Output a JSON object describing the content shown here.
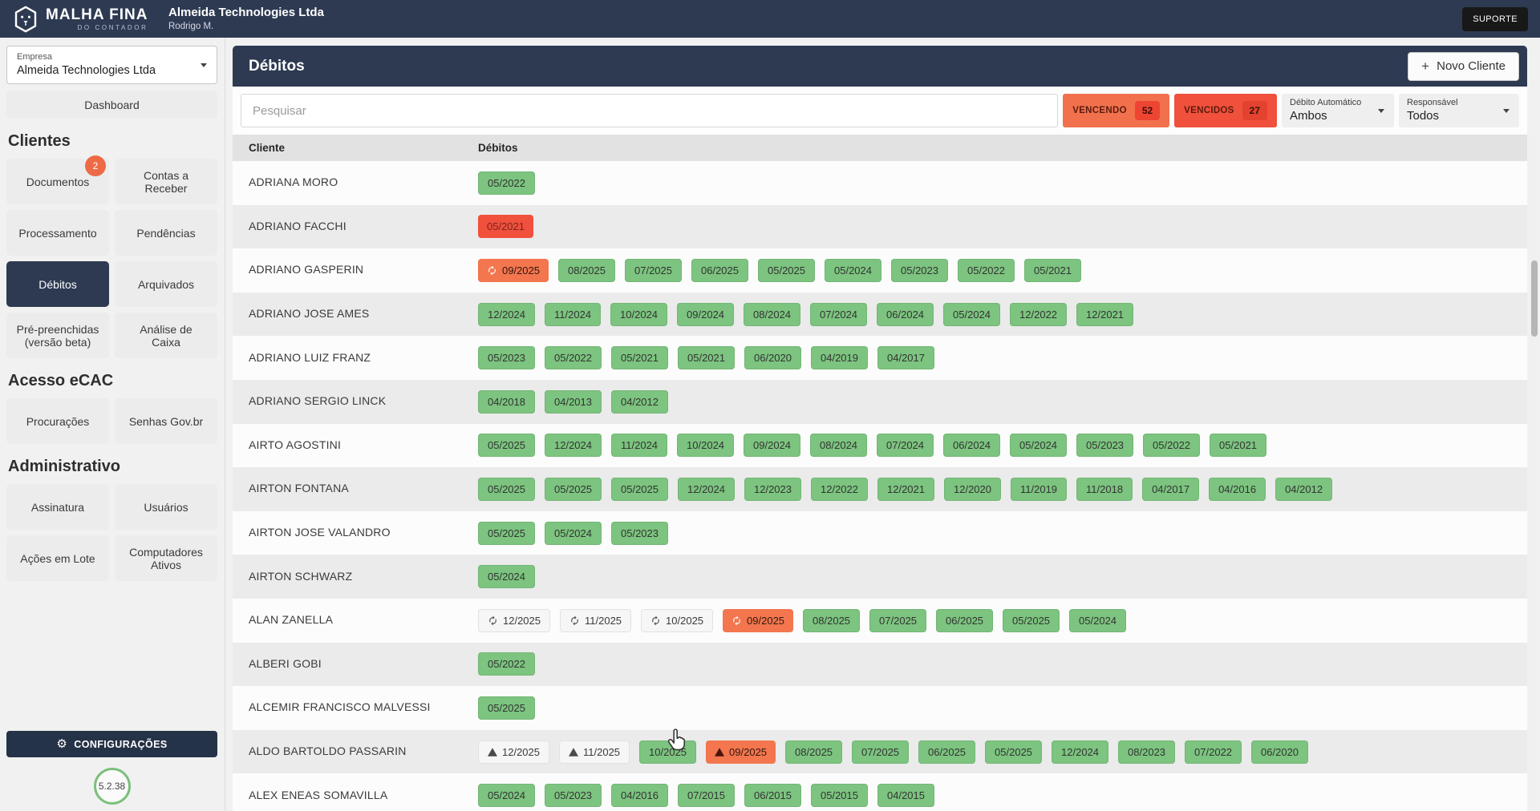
{
  "topbar": {
    "logo_title": "MALHA FINA",
    "logo_subtitle": "DO CONTADOR",
    "company_name": "Almeida Technologies Ltda",
    "user_name": "Rodrigo M.",
    "support_label": "SUPORTE"
  },
  "icons": {
    "plus": "+",
    "gear": "⚙"
  },
  "sidebar": {
    "company_select": {
      "label": "Empresa",
      "value": "Almeida Technologies Ltda"
    },
    "dashboard_label": "Dashboard",
    "sections": [
      {
        "title": "Clientes",
        "items": [
          {
            "label": "Documentos",
            "badge": "2"
          },
          {
            "label": "Contas a Receber"
          },
          {
            "label": "Processamento"
          },
          {
            "label": "Pendências"
          },
          {
            "label": "Débitos",
            "active": true
          },
          {
            "label": "Arquivados"
          },
          {
            "label": "Pré-preenchidas (versão beta)"
          },
          {
            "label": "Análise de Caixa"
          }
        ]
      },
      {
        "title": "Acesso eCAC",
        "items": [
          {
            "label": "Procurações"
          },
          {
            "label": "Senhas Gov.br"
          }
        ]
      },
      {
        "title": "Administrativo",
        "items": [
          {
            "label": "Assinatura"
          },
          {
            "label": "Usuários"
          },
          {
            "label": "Ações em Lote"
          },
          {
            "label": "Computadores Ativos"
          }
        ]
      }
    ],
    "settings_label": "CONFIGURAÇÕES",
    "version": "5.2.38"
  },
  "main": {
    "title": "Débitos",
    "new_client_label": "Novo Cliente",
    "search_placeholder": "Pesquisar",
    "filters": {
      "vencendo": {
        "label": "VENCENDO",
        "count": "52"
      },
      "vencidos": {
        "label": "VENCIDOS",
        "count": "27"
      },
      "debito_automatico": {
        "label": "Débito Automático",
        "value": "Ambos"
      },
      "responsavel": {
        "label": "Responsável",
        "value": "Todos"
      }
    },
    "table": {
      "columns": {
        "client": "Cliente",
        "debits": "Débitos"
      },
      "rows": [
        {
          "client": "ADRIANA MORO",
          "debits": [
            {
              "label": "05/2022",
              "state": "ok"
            }
          ]
        },
        {
          "client": "ADRIANO FACCHI",
          "debits": [
            {
              "label": "05/2021",
              "state": "overdue"
            }
          ]
        },
        {
          "client": "ADRIANO GASPERIN",
          "debits": [
            {
              "label": "09/2025",
              "state": "due-soon",
              "icon": "sync"
            },
            {
              "label": "08/2025",
              "state": "ok"
            },
            {
              "label": "07/2025",
              "state": "ok"
            },
            {
              "label": "06/2025",
              "state": "ok"
            },
            {
              "label": "05/2025",
              "state": "ok"
            },
            {
              "label": "05/2024",
              "state": "ok"
            },
            {
              "label": "05/2023",
              "state": "ok"
            },
            {
              "label": "05/2022",
              "state": "ok"
            },
            {
              "label": "05/2021",
              "state": "ok"
            }
          ]
        },
        {
          "client": "ADRIANO JOSE AMES",
          "debits": [
            {
              "label": "12/2024",
              "state": "ok"
            },
            {
              "label": "11/2024",
              "state": "ok"
            },
            {
              "label": "10/2024",
              "state": "ok"
            },
            {
              "label": "09/2024",
              "state": "ok"
            },
            {
              "label": "08/2024",
              "state": "ok"
            },
            {
              "label": "07/2024",
              "state": "ok"
            },
            {
              "label": "06/2024",
              "state": "ok"
            },
            {
              "label": "05/2024",
              "state": "ok"
            },
            {
              "label": "12/2022",
              "state": "ok"
            },
            {
              "label": "12/2021",
              "state": "ok"
            }
          ]
        },
        {
          "client": "ADRIANO LUIZ FRANZ",
          "debits": [
            {
              "label": "05/2023",
              "state": "ok"
            },
            {
              "label": "05/2022",
              "state": "ok"
            },
            {
              "label": "05/2021",
              "state": "ok"
            },
            {
              "label": "05/2021",
              "state": "ok"
            },
            {
              "label": "06/2020",
              "state": "ok"
            },
            {
              "label": "04/2019",
              "state": "ok"
            },
            {
              "label": "04/2017",
              "state": "ok"
            }
          ]
        },
        {
          "client": "ADRIANO SERGIO LINCK",
          "debits": [
            {
              "label": "04/2018",
              "state": "ok"
            },
            {
              "label": "04/2013",
              "state": "ok"
            },
            {
              "label": "04/2012",
              "state": "ok"
            }
          ]
        },
        {
          "client": "AIRTO AGOSTINI",
          "debits": [
            {
              "label": "05/2025",
              "state": "ok"
            },
            {
              "label": "12/2024",
              "state": "ok"
            },
            {
              "label": "11/2024",
              "state": "ok"
            },
            {
              "label": "10/2024",
              "state": "ok"
            },
            {
              "label": "09/2024",
              "state": "ok"
            },
            {
              "label": "08/2024",
              "state": "ok"
            },
            {
              "label": "07/2024",
              "state": "ok"
            },
            {
              "label": "06/2024",
              "state": "ok"
            },
            {
              "label": "05/2024",
              "state": "ok"
            },
            {
              "label": "05/2023",
              "state": "ok"
            },
            {
              "label": "05/2022",
              "state": "ok"
            },
            {
              "label": "05/2021",
              "state": "ok"
            }
          ]
        },
        {
          "client": "AIRTON FONTANA",
          "debits": [
            {
              "label": "05/2025",
              "state": "ok"
            },
            {
              "label": "05/2025",
              "state": "ok"
            },
            {
              "label": "05/2025",
              "state": "ok"
            },
            {
              "label": "12/2024",
              "state": "ok"
            },
            {
              "label": "12/2023",
              "state": "ok"
            },
            {
              "label": "12/2022",
              "state": "ok"
            },
            {
              "label": "12/2021",
              "state": "ok"
            },
            {
              "label": "12/2020",
              "state": "ok"
            },
            {
              "label": "11/2019",
              "state": "ok"
            },
            {
              "label": "11/2018",
              "state": "ok"
            },
            {
              "label": "04/2017",
              "state": "ok"
            },
            {
              "label": "04/2016",
              "state": "ok"
            },
            {
              "label": "04/2012",
              "state": "ok"
            }
          ]
        },
        {
          "client": "AIRTON JOSE VALANDRO",
          "debits": [
            {
              "label": "05/2025",
              "state": "ok"
            },
            {
              "label": "05/2024",
              "state": "ok"
            },
            {
              "label": "05/2023",
              "state": "ok"
            }
          ]
        },
        {
          "client": "AIRTON SCHWARZ",
          "debits": [
            {
              "label": "05/2024",
              "state": "ok"
            }
          ]
        },
        {
          "client": "ALAN ZANELLA",
          "debits": [
            {
              "label": "12/2025",
              "state": "scheduled",
              "icon": "sync"
            },
            {
              "label": "11/2025",
              "state": "scheduled",
              "icon": "sync"
            },
            {
              "label": "10/2025",
              "state": "scheduled",
              "icon": "sync"
            },
            {
              "label": "09/2025",
              "state": "due-soon",
              "icon": "sync"
            },
            {
              "label": "08/2025",
              "state": "ok"
            },
            {
              "label": "07/2025",
              "state": "ok"
            },
            {
              "label": "06/2025",
              "state": "ok"
            },
            {
              "label": "05/2025",
              "state": "ok"
            },
            {
              "label": "05/2024",
              "state": "ok"
            }
          ]
        },
        {
          "client": "ALBERI GOBI",
          "debits": [
            {
              "label": "05/2022",
              "state": "ok"
            }
          ]
        },
        {
          "client": "ALCEMIR FRANCISCO MALVESSI",
          "debits": [
            {
              "label": "05/2025",
              "state": "ok"
            }
          ]
        },
        {
          "client": "ALDO BARTOLDO PASSARIN",
          "debits": [
            {
              "label": "12/2025",
              "state": "scheduled",
              "icon": "warning"
            },
            {
              "label": "11/2025",
              "state": "scheduled",
              "icon": "warning"
            },
            {
              "label": "10/2025",
              "state": "ok"
            },
            {
              "label": "09/2025",
              "state": "due-soon",
              "icon": "warning"
            },
            {
              "label": "08/2025",
              "state": "ok"
            },
            {
              "label": "07/2025",
              "state": "ok"
            },
            {
              "label": "06/2025",
              "state": "ok"
            },
            {
              "label": "05/2025",
              "state": "ok"
            },
            {
              "label": "12/2024",
              "state": "ok"
            },
            {
              "label": "08/2023",
              "state": "ok"
            },
            {
              "label": "07/2022",
              "state": "ok"
            },
            {
              "label": "06/2020",
              "state": "ok"
            }
          ]
        },
        {
          "client": "ALEX ENEAS SOMAVILLA",
          "debits": [
            {
              "label": "05/2024",
              "state": "ok"
            },
            {
              "label": "05/2023",
              "state": "ok"
            },
            {
              "label": "04/2016",
              "state": "ok"
            },
            {
              "label": "07/2015",
              "state": "ok"
            },
            {
              "label": "06/2015",
              "state": "ok"
            },
            {
              "label": "05/2015",
              "state": "ok"
            },
            {
              "label": "04/2015",
              "state": "ok"
            }
          ]
        }
      ]
    }
  },
  "colors": {
    "navy": "#2d3a52",
    "chip_ok": "#7cc47f",
    "chip_overdue": "#f0503c",
    "chip_due": "#f3764e",
    "badge_orange": "#ed6a45",
    "version_ring": "#7bbf7b"
  }
}
